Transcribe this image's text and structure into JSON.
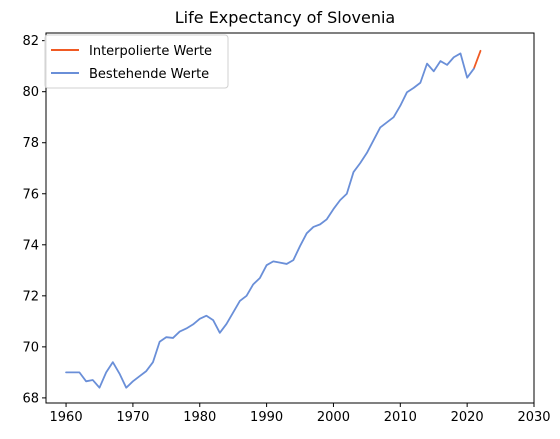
{
  "chart_data": {
    "type": "line",
    "title": "Life Expectancy of Slovenia",
    "xlabel": "",
    "ylabel": "",
    "xlim": [
      1957,
      2030
    ],
    "ylim": [
      67.8,
      82.3
    ],
    "xticks": [
      1960,
      1970,
      1980,
      1990,
      2000,
      2010,
      2020,
      2030
    ],
    "yticks": [
      68,
      70,
      72,
      74,
      76,
      78,
      80,
      82
    ],
    "grid": false,
    "legend_position": "top-left",
    "series": [
      {
        "name": "Interpolierte Werte",
        "color": "#f05a23",
        "x": [
          2021,
          2022
        ],
        "y": [
          80.9,
          81.6
        ]
      },
      {
        "name": "Bestehende Werte",
        "color": "#6a8fd8",
        "x": [
          1960,
          1961,
          1962,
          1963,
          1964,
          1965,
          1966,
          1967,
          1968,
          1969,
          1970,
          1971,
          1972,
          1973,
          1974,
          1975,
          1976,
          1977,
          1978,
          1979,
          1980,
          1981,
          1982,
          1983,
          1984,
          1985,
          1986,
          1987,
          1988,
          1989,
          1990,
          1991,
          1992,
          1993,
          1994,
          1995,
          1996,
          1997,
          1998,
          1999,
          2000,
          2001,
          2002,
          2003,
          2004,
          2005,
          2006,
          2007,
          2008,
          2009,
          2010,
          2011,
          2012,
          2013,
          2014,
          2015,
          2016,
          2017,
          2018,
          2019,
          2020,
          2021
        ],
        "y": [
          69.0,
          69.0,
          69.0,
          68.65,
          68.7,
          68.4,
          69.0,
          69.4,
          68.95,
          68.4,
          68.65,
          68.85,
          69.05,
          69.4,
          70.2,
          70.38,
          70.35,
          70.6,
          70.72,
          70.88,
          71.1,
          71.22,
          71.05,
          70.55,
          70.9,
          71.35,
          71.8,
          72.0,
          72.45,
          72.7,
          73.2,
          73.35,
          73.3,
          73.25,
          73.4,
          73.95,
          74.45,
          74.7,
          74.8,
          75.0,
          75.4,
          75.75,
          76.0,
          76.85,
          77.2,
          77.6,
          78.1,
          78.6,
          78.8,
          79.0,
          79.45,
          79.98,
          80.15,
          80.35,
          81.1,
          80.8,
          81.2,
          81.05,
          81.35,
          81.5,
          80.55,
          80.9
        ]
      }
    ]
  }
}
